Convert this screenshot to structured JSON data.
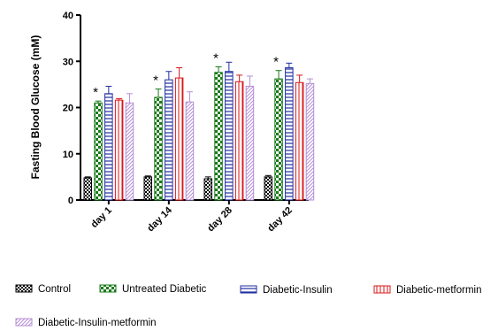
{
  "chart_data": {
    "type": "bar",
    "title": "",
    "xlabel": "",
    "ylabel": "Fasting Blood Glucose (mM)",
    "ylim": [
      0,
      40
    ],
    "yticks": [
      0,
      10,
      20,
      30,
      40
    ],
    "categories": [
      "day 1",
      "day 14",
      "day 28",
      "day 42"
    ],
    "series": [
      {
        "name": "Control",
        "pattern": "checker-black",
        "color": "#000000",
        "values": [
          4.8,
          5.0,
          4.6,
          5.0
        ],
        "errors": [
          0.2,
          0.2,
          0.4,
          0.3
        ]
      },
      {
        "name": "Untreated Diabetic",
        "pattern": "checker-green",
        "color": "#1a7a1a",
        "values": [
          21.0,
          22.2,
          27.6,
          26.2
        ],
        "errors": [
          0.4,
          1.8,
          1.2,
          1.8
        ]
      },
      {
        "name": "Diabetic-Insulin",
        "pattern": "hlines-blue",
        "color": "#1f2fa0",
        "values": [
          23.0,
          26.0,
          27.8,
          28.6
        ],
        "errors": [
          1.6,
          1.8,
          2.0,
          1.0
        ]
      },
      {
        "name": "Diabetic-metformin",
        "pattern": "vlines-red",
        "color": "#d81818",
        "values": [
          21.6,
          26.4,
          25.6,
          25.4
        ],
        "errors": [
          0.3,
          2.2,
          1.4,
          1.6
        ]
      },
      {
        "name": "Diabetic-Insulin-metformin",
        "pattern": "diag-purple",
        "color": "#b58fd6",
        "values": [
          21.0,
          21.2,
          24.6,
          25.2
        ],
        "errors": [
          2.0,
          2.2,
          2.2,
          1.0
        ]
      }
    ],
    "annotations": [
      {
        "text": "*",
        "category": "day 1",
        "series": "Untreated Diabetic"
      },
      {
        "text": "*",
        "category": "day 14",
        "series": "Untreated Diabetic"
      },
      {
        "text": "*",
        "category": "day 28",
        "series": "Untreated Diabetic"
      },
      {
        "text": "*",
        "category": "day 42",
        "series": "Untreated Diabetic"
      }
    ],
    "legend_position": "bottom",
    "grid": false
  }
}
